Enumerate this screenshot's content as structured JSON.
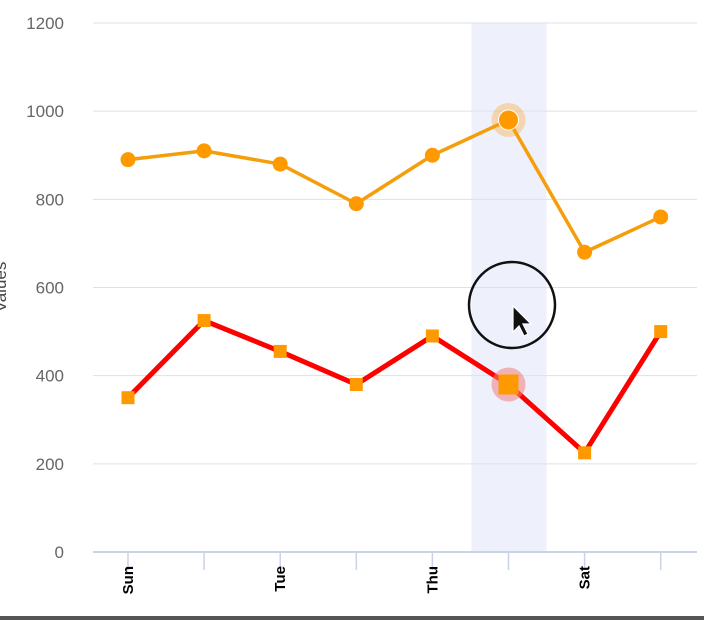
{
  "chart_data": {
    "type": "line",
    "title": "",
    "xlabel": "",
    "ylabel": "Values",
    "x_tick_labels": [
      "Sun",
      "",
      "Tue",
      "",
      "Thu",
      "",
      "Sat",
      ""
    ],
    "ylim": [
      0,
      1200
    ],
    "yticks": [
      0,
      200,
      400,
      600,
      800,
      1000,
      1200
    ],
    "grid": true,
    "legend": "none",
    "highlighted_index": 5,
    "series": [
      {
        "values": [
          890,
          910,
          880,
          790,
          900,
          980,
          680,
          760
        ],
        "color": "#f59e0b",
        "marker": "circle",
        "marker_color": "#ff9900"
      },
      {
        "values": [
          350,
          525,
          455,
          380,
          490,
          380,
          225,
          500
        ],
        "color": "#ff0000",
        "marker": "square",
        "marker_color": "#ff9900"
      }
    ],
    "colors": {
      "grid": "#dde1e8",
      "axis": "#c9d3e6",
      "highlight_band": "#eef1fb"
    }
  }
}
